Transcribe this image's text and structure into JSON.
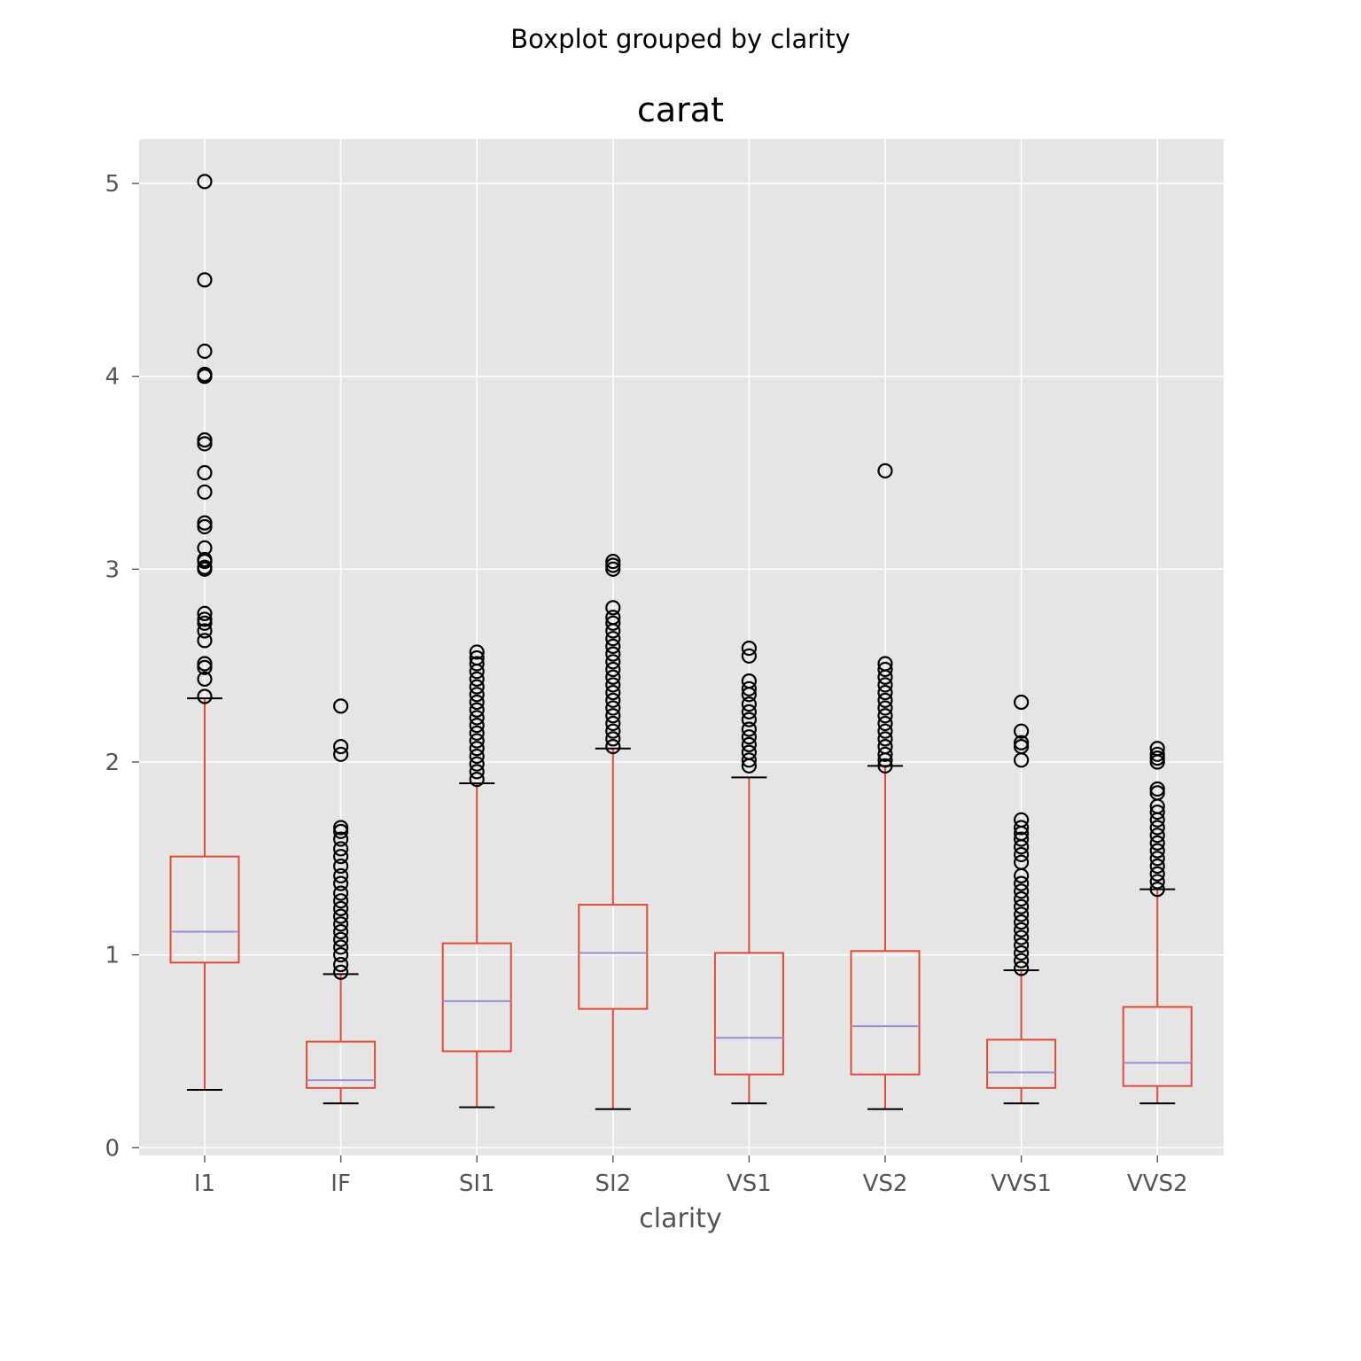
{
  "chart_data": {
    "type": "boxplot",
    "suptitle": "Boxplot grouped by clarity",
    "title": "carat",
    "xlabel": "clarity",
    "ylabel": "",
    "ylim": [
      -0.04,
      5.23
    ],
    "yticks": [
      "0",
      "1",
      "2",
      "3",
      "4",
      "5"
    ],
    "grid": true,
    "colors": {
      "background": "#e5e5e5",
      "grid": "#ffffff",
      "box": "#e24a33",
      "median": "#988ed5",
      "cap": "#000000",
      "flier": "#000000"
    },
    "categories": [
      "I1",
      "IF",
      "SI1",
      "SI2",
      "VS1",
      "VS2",
      "VVS1",
      "VVS2"
    ],
    "boxes": [
      {
        "label": "I1",
        "whislo": 0.3,
        "q1": 0.96,
        "med": 1.12,
        "q3": 1.51,
        "whishi": 2.33,
        "fliers": [
          2.34,
          2.43,
          2.49,
          2.51,
          2.63,
          2.68,
          2.72,
          2.74,
          2.77,
          3.0,
          3.01,
          3.04,
          3.05,
          3.11,
          3.22,
          3.24,
          3.4,
          3.5,
          3.65,
          3.67,
          4.0,
          4.01,
          4.13,
          4.5,
          5.01
        ]
      },
      {
        "label": "IF",
        "whislo": 0.23,
        "q1": 0.31,
        "med": 0.35,
        "q3": 0.55,
        "whishi": 0.9,
        "fliers": [
          0.91,
          0.95,
          1.0,
          1.04,
          1.08,
          1.12,
          1.16,
          1.2,
          1.24,
          1.28,
          1.32,
          1.37,
          1.41,
          1.46,
          1.51,
          1.55,
          1.6,
          1.64,
          1.66,
          2.04,
          2.08,
          2.29
        ]
      },
      {
        "label": "SI1",
        "whislo": 0.21,
        "q1": 0.5,
        "med": 0.76,
        "q3": 1.06,
        "whishi": 1.89,
        "fliers": [
          1.91,
          1.95,
          1.99,
          2.03,
          2.07,
          2.11,
          2.15,
          2.19,
          2.23,
          2.27,
          2.31,
          2.35,
          2.39,
          2.43,
          2.47,
          2.51,
          2.54,
          2.57
        ]
      },
      {
        "label": "SI2",
        "whislo": 0.2,
        "q1": 0.72,
        "med": 1.01,
        "q3": 1.26,
        "whishi": 2.07,
        "fliers": [
          2.08,
          2.12,
          2.16,
          2.2,
          2.24,
          2.28,
          2.32,
          2.36,
          2.4,
          2.44,
          2.48,
          2.52,
          2.56,
          2.6,
          2.64,
          2.68,
          2.72,
          2.75,
          2.8,
          3.0,
          3.02,
          3.04
        ]
      },
      {
        "label": "VS1",
        "whislo": 0.23,
        "q1": 0.38,
        "med": 0.57,
        "q3": 1.01,
        "whishi": 1.92,
        "fliers": [
          1.98,
          2.01,
          2.05,
          2.09,
          2.13,
          2.17,
          2.22,
          2.26,
          2.3,
          2.35,
          2.38,
          2.42,
          2.55,
          2.59
        ]
      },
      {
        "label": "VS2",
        "whislo": 0.2,
        "q1": 0.38,
        "med": 0.63,
        "q3": 1.02,
        "whishi": 1.98,
        "fliers": [
          1.98,
          2.01,
          2.04,
          2.08,
          2.12,
          2.16,
          2.2,
          2.24,
          2.28,
          2.32,
          2.36,
          2.4,
          2.44,
          2.48,
          2.51,
          3.51
        ]
      },
      {
        "label": "VVS1",
        "whislo": 0.23,
        "q1": 0.31,
        "med": 0.39,
        "q3": 0.56,
        "whishi": 0.92,
        "fliers": [
          0.93,
          0.97,
          1.01,
          1.05,
          1.09,
          1.13,
          1.17,
          1.21,
          1.25,
          1.29,
          1.33,
          1.37,
          1.41,
          1.48,
          1.52,
          1.56,
          1.6,
          1.63,
          1.66,
          1.7,
          2.01,
          2.08,
          2.1,
          2.16,
          2.31
        ]
      },
      {
        "label": "VVS2",
        "whislo": 0.23,
        "q1": 0.32,
        "med": 0.44,
        "q3": 0.73,
        "whishi": 1.34,
        "fliers": [
          1.34,
          1.38,
          1.42,
          1.46,
          1.5,
          1.54,
          1.58,
          1.62,
          1.66,
          1.7,
          1.74,
          1.77,
          1.84,
          1.86,
          2.0,
          2.02,
          2.04,
          2.07
        ]
      }
    ]
  }
}
